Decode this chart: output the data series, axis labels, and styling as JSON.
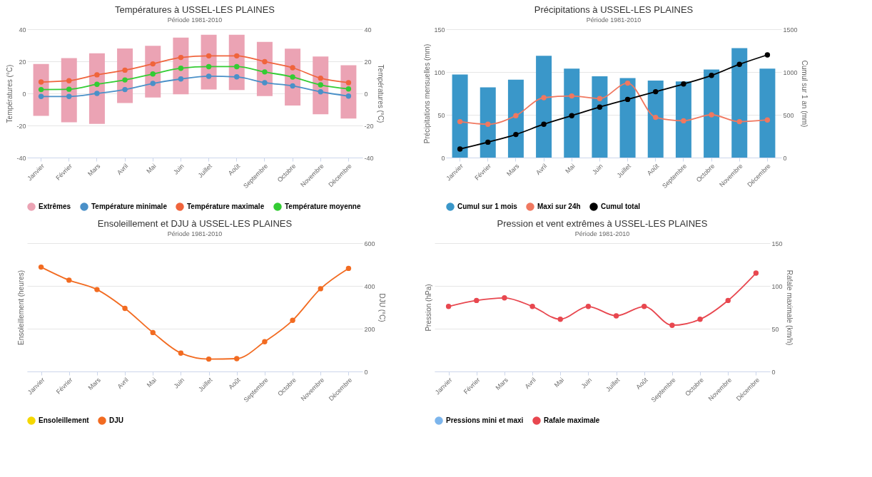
{
  "chart_data": [
    {
      "type": "line",
      "title": "Températures à USSEL-LES PLAINES",
      "subtitle": "Période 1981-2010",
      "categories": [
        "Janvier",
        "Février",
        "Mars",
        "Avril",
        "Mai",
        "Juin",
        "Juillet",
        "Août",
        "Septembre",
        "Octobre",
        "Novembre",
        "Décembre"
      ],
      "ylabel": "Températures (°C)",
      "y2label": "Températures (°C)",
      "ylim": [
        -40,
        40
      ],
      "yticks": [
        -40,
        -20,
        0,
        20,
        40
      ],
      "y2lim": [
        -40,
        40
      ],
      "y2ticks": [
        -40,
        -20,
        0,
        20,
        40
      ],
      "grid": "y",
      "legend": "bottom",
      "marker": "circle",
      "line_style": "solid",
      "series": [
        {
          "name": "Extrêmes",
          "type": "bar",
          "color": "#eba3b4",
          "base": [
            -14,
            -18,
            -19,
            -6,
            -2.5,
            -0.5,
            2.4,
            2.1,
            -1.7,
            -7.6,
            -13,
            -15.7
          ],
          "values": [
            32.3,
            40,
            44,
            34,
            32.2,
            35.3,
            34.2,
            34.5,
            33.8,
            35.5,
            36,
            33.3
          ]
        },
        {
          "name": "Température minimale",
          "color": "#4a90c8",
          "values": [
            -1.9,
            -1.9,
            0,
            2.4,
            6.2,
            9,
            10.7,
            10.3,
            6.7,
            4.7,
            1,
            -1.7
          ]
        },
        {
          "name": "Température maximale",
          "color": "#f0643c",
          "values": [
            7.1,
            7.9,
            11.6,
            14.5,
            18.4,
            22.4,
            23.4,
            23.4,
            19.8,
            16,
            9.5,
            6.7
          ]
        },
        {
          "name": "Température moyenne",
          "color": "#33cc33",
          "values": [
            2.4,
            2.6,
            5.7,
            8.4,
            12.1,
            15.7,
            16.7,
            16.7,
            13.4,
            10.2,
            5.3,
            2.8
          ]
        }
      ]
    },
    {
      "type": "bar",
      "title": "Précipitations à USSEL-LES PLAINES",
      "subtitle": "Période 1981-2010",
      "categories": [
        "Janvier",
        "Février",
        "Mars",
        "Avril",
        "Mai",
        "Juin",
        "Juillet",
        "Août",
        "Septembre",
        "Octobre",
        "Novembre",
        "Décembre"
      ],
      "ylabel": "Précipitations mensuelles (mm)",
      "y2label": "Cumul sur 1 an (mm)",
      "ylim": [
        0,
        150
      ],
      "yticks": [
        0,
        50,
        100,
        150
      ],
      "y2lim": [
        0,
        1500
      ],
      "y2ticks": [
        0,
        500,
        {
          "value": 1000,
          "label": "1000"
        },
        {
          "value": 1500,
          "label": "1500"
        }
      ],
      "grid": "y",
      "legend": "bottom",
      "marker": "circle",
      "line_style": "solid",
      "series": [
        {
          "name": "Cumul sur 1 mois",
          "color": "#3a97c9",
          "values": [
            97,
            82,
            91,
            119,
            104,
            95,
            93,
            90,
            89,
            103,
            128,
            104
          ]
        },
        {
          "name": "Maxi sur 24h",
          "type": "line",
          "color": "#f07860",
          "values": [
            42,
            39,
            49,
            70,
            72,
            69,
            87,
            47,
            43,
            50,
            42,
            44
          ]
        },
        {
          "name": "Cumul total",
          "type": "line",
          "axis": "y2",
          "color": "#000000",
          "values": [
            100,
            180,
            270,
            390,
            490,
            590,
            680,
            770,
            860,
            960,
            1090,
            1200
          ]
        }
      ]
    },
    {
      "type": "line",
      "title": "Ensoleillement et DJU à USSEL-LES PLAINES",
      "subtitle": "Période 1981-2010",
      "categories": [
        "Janvier",
        "Février",
        "Mars",
        "Avril",
        "Mai",
        "Juin",
        "Juillet",
        "Août",
        "Septembre",
        "Octobre",
        "Novembre",
        "Décembre"
      ],
      "ylabel": "Ensoleillement (heures)",
      "y2label": "DJU (°C)",
      "y2lim": [
        0,
        600
      ],
      "y2ticks": [
        0,
        200,
        400,
        600
      ],
      "grid": "y",
      "legend": "bottom",
      "marker": "circle",
      "line_style": "solid",
      "series": [
        {
          "name": "Ensoleillement",
          "color": "#f5d800",
          "values": [
            null,
            null,
            null,
            null,
            null,
            null,
            null,
            null,
            null,
            null,
            null,
            null
          ]
        },
        {
          "name": "DJU",
          "axis": "y2",
          "color": "#f26b21",
          "values": [
            488,
            427,
            383,
            295,
            182,
            86,
            58,
            60,
            139,
            239,
            387,
            482
          ]
        }
      ]
    },
    {
      "type": "line",
      "title": "Pression et vent extrêmes à USSEL-LES PLAINES",
      "subtitle": "Période 1981-2010",
      "categories": [
        "Janvier",
        "Février",
        "Mars",
        "Avril",
        "Mai",
        "Juin",
        "Juillet",
        "Août",
        "Septembre",
        "Octobre",
        "Novembre",
        "Décembre"
      ],
      "ylabel": "Pression (hPa)",
      "y2label": "Rafale maximale (km/h)",
      "y2lim": [
        0,
        150
      ],
      "y2ticks": [
        0,
        50,
        100,
        150
      ],
      "grid": "y",
      "legend": "bottom",
      "marker": "circle",
      "line_style": "solid",
      "series": [
        {
          "name": "Pressions mini et maxi",
          "color": "#7cb5ec",
          "values": [
            null,
            null,
            null,
            null,
            null,
            null,
            null,
            null,
            null,
            null,
            null,
            null
          ]
        },
        {
          "name": "Rafale maximale",
          "axis": "y2",
          "color": "#e8474f",
          "values": [
            76,
            83,
            86,
            76,
            61,
            76,
            65,
            76,
            54,
            61,
            83,
            115
          ]
        }
      ]
    }
  ]
}
